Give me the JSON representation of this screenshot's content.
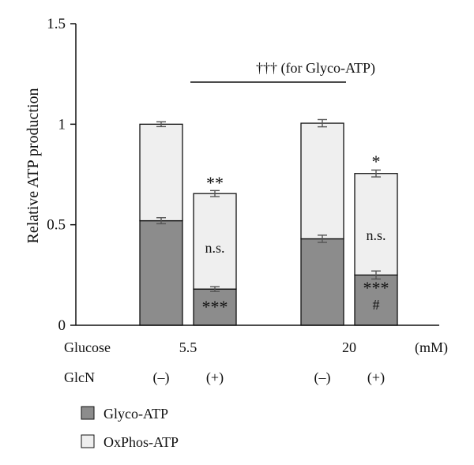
{
  "chart_data": {
    "type": "bar",
    "stacked": true,
    "ylabel": "Relative ATP production",
    "ylim": [
      0,
      1.5
    ],
    "yticks": [
      "0",
      "0.5",
      "1",
      "1.5"
    ],
    "yticks_values": [
      0,
      0.5,
      1,
      1.5
    ],
    "conditions": {
      "glucose_label": "Glucose",
      "glucose_values": [
        "5.5",
        "20"
      ],
      "glucose_unit": "(mM)",
      "glcn_label": "GlcN",
      "glcn_values": [
        "(–)",
        "(+)",
        "(–)",
        "(+)"
      ]
    },
    "categories": [
      "5.5 / (–)",
      "5.5 / (+)",
      "20 / (–)",
      "20 / (+)"
    ],
    "series": [
      {
        "name": "Glyco-ATP",
        "color": "#8c8c8c",
        "values": [
          0.52,
          0.18,
          0.43,
          0.25
        ],
        "errors": [
          0.015,
          0.012,
          0.018,
          0.02
        ]
      },
      {
        "name": "OxPhos-ATP",
        "color": "#efefef",
        "values": [
          0.48,
          0.475,
          0.575,
          0.505
        ],
        "errors": [
          0.012,
          0.015,
          0.018,
          0.017
        ]
      }
    ],
    "annotations": {
      "bar2_top": "**",
      "bar2_mid": "n.s.",
      "bar2_bottom": "***",
      "bar4_top": "*",
      "bar4_mid": "n.s.",
      "bar4_bottom": "***",
      "bar4_hash": "#",
      "bracket_text": "†††  (for Glyco-ATP)"
    },
    "legend": [
      "Glyco-ATP",
      "OxPhos-ATP"
    ],
    "legend_position": "bottom-left"
  }
}
